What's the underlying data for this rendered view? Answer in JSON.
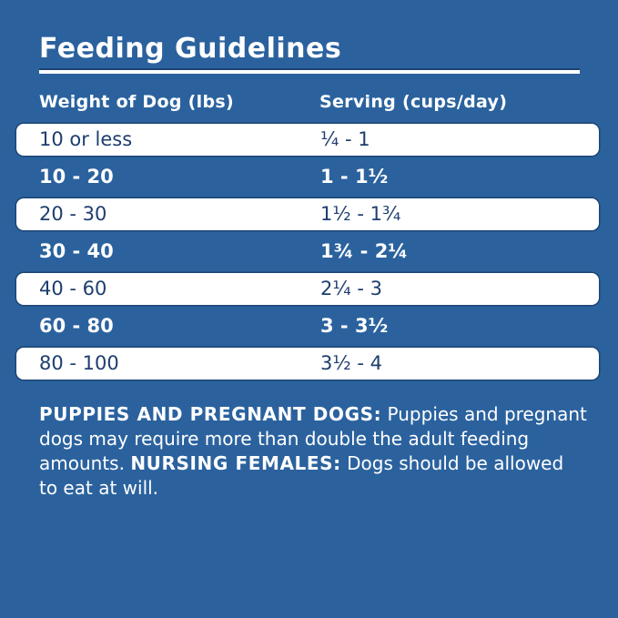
{
  "page": {
    "title": "Feeding Guidelines",
    "background_color": "#2B629E",
    "highlight_row_color": "#FFFFFF",
    "dark_text_color": "#1E3E6E",
    "light_text_color": "#FFFFFF"
  },
  "table": {
    "columns": [
      "Weight of Dog (lbs)",
      "Serving (cups/day)"
    ],
    "rows": [
      {
        "weight": "10 or less",
        "serving": "¼ - 1",
        "highlighted": true
      },
      {
        "weight": "10 - 20",
        "serving": "1 - 1½",
        "highlighted": false
      },
      {
        "weight": "20 - 30",
        "serving": "1½ - 1¾",
        "highlighted": true
      },
      {
        "weight": "30 - 40",
        "serving": "1¾ - 2¼",
        "highlighted": false
      },
      {
        "weight": "40 - 60",
        "serving": "2¼ - 3",
        "highlighted": true
      },
      {
        "weight": "60 - 80",
        "serving": "3 - 3½",
        "highlighted": false
      },
      {
        "weight": "80 - 100",
        "serving": "3½ - 4",
        "highlighted": true
      }
    ]
  },
  "notes": {
    "line1_bold": "PUPPIES AND PREGNANT DOGS:",
    "line1_rest": " Puppies and pregnant",
    "line2": "dogs may require more than double the adult feeding",
    "line3_pre": "amounts. ",
    "line3_bold": "NURSING FEMALES:",
    "line3_rest": " Dogs should be allowed",
    "line4": "to eat at will."
  }
}
